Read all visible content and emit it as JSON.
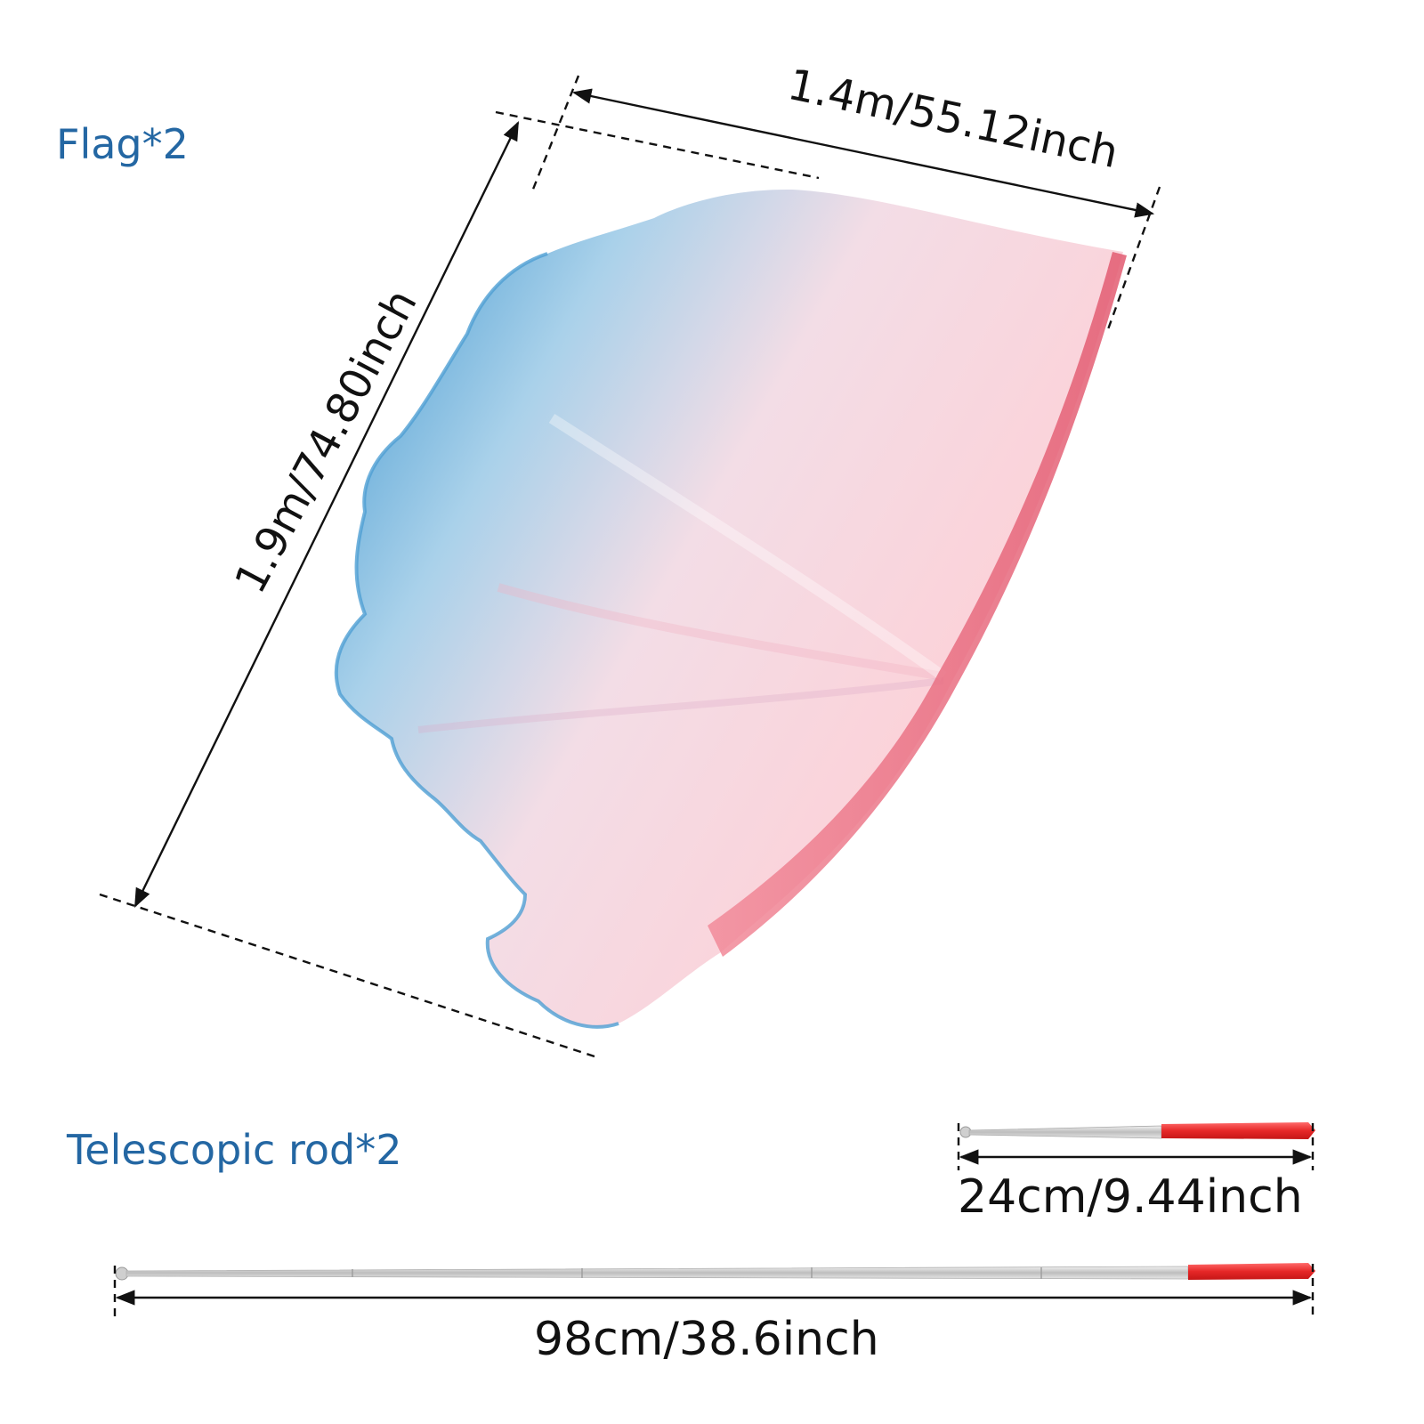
{
  "flag": {
    "label": "Flag*2",
    "width_label": "1.4m/55.12inch",
    "height_label": "1.9m/74.80inch",
    "colors": {
      "edge_blue": "#5ea9d6",
      "body_pink": "#f8c9d2",
      "hem_red": "#ea6f82"
    }
  },
  "rod": {
    "label": "Telescopic rod*2",
    "short_label": "24cm/9.44inch",
    "long_label": "98cm/38.6inch",
    "colors": {
      "metal": "#d9d9d9",
      "handle": "#f23a3a"
    }
  }
}
